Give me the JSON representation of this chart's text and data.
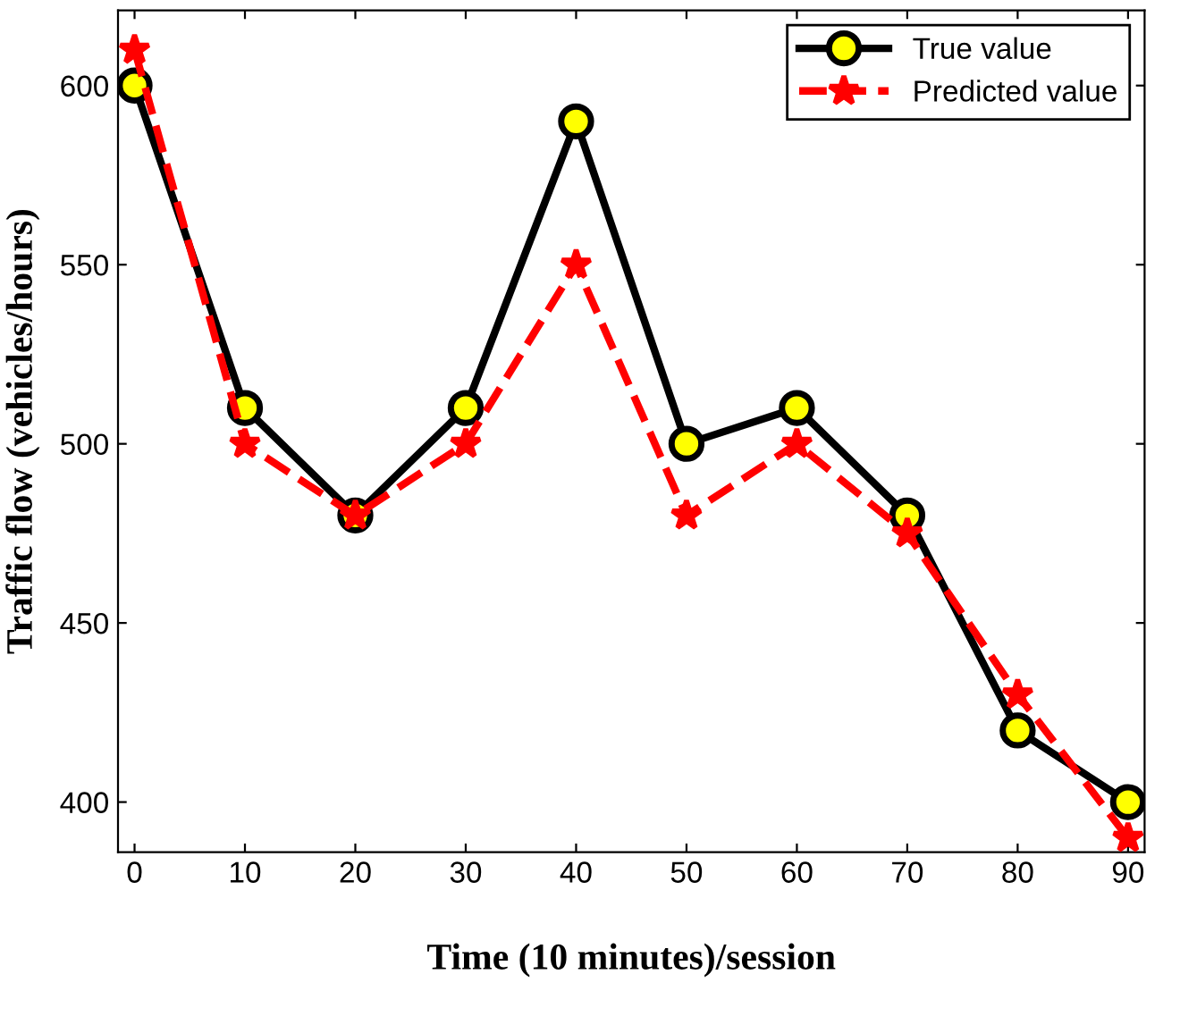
{
  "chart_data": {
    "type": "line",
    "xlabel": "Time (10 minutes)/session",
    "ylabel": "Traffic flow (vehicles/hours)",
    "x": [
      0,
      10,
      20,
      30,
      40,
      50,
      60,
      70,
      80,
      90
    ],
    "series": [
      {
        "name": "True value",
        "color": "#000000",
        "marker": "circle",
        "line_style": "solid",
        "values": [
          600,
          510,
          480,
          510,
          590,
          500,
          510,
          480,
          420,
          400
        ]
      },
      {
        "name": "Predicted value",
        "color": "#ff0000",
        "marker": "star",
        "line_style": "dashed",
        "values": [
          610,
          500,
          480,
          500,
          550,
          480,
          500,
          475,
          430,
          390
        ]
      }
    ],
    "xlim": [
      -1.5,
      91.5
    ],
    "ylim": [
      386,
      621
    ],
    "xticks": [
      0,
      10,
      20,
      30,
      40,
      50,
      60,
      70,
      80,
      90
    ],
    "yticks": [
      400,
      450,
      500,
      550,
      600
    ],
    "grid": false,
    "legend": "top right"
  }
}
